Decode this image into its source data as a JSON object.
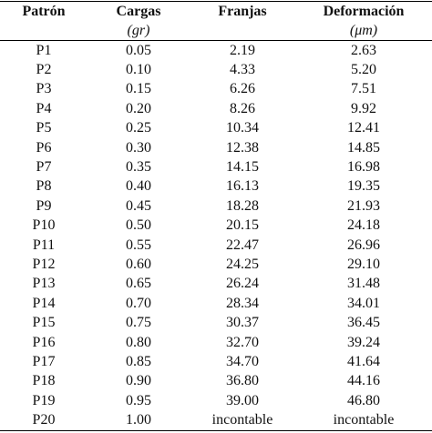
{
  "table": {
    "header": [
      "Patrón",
      "Cargas",
      "Franjas",
      "Deformación"
    ],
    "units": {
      "cargas": "(gr)",
      "deformacion": "(μm)"
    },
    "rows": [
      [
        "P1",
        "0.05",
        "2.19",
        "2.63"
      ],
      [
        "P2",
        "0.10",
        "4.33",
        "5.20"
      ],
      [
        "P3",
        "0.15",
        "6.26",
        "7.51"
      ],
      [
        "P4",
        "0.20",
        "8.26",
        "9.92"
      ],
      [
        "P5",
        "0.25",
        "10.34",
        "12.41"
      ],
      [
        "P6",
        "0.30",
        "12.38",
        "14.85"
      ],
      [
        "P7",
        "0.35",
        "14.15",
        "16.98"
      ],
      [
        "P8",
        "0.40",
        "16.13",
        "19.35"
      ],
      [
        "P9",
        "0.45",
        "18.28",
        "21.93"
      ],
      [
        "P10",
        "0.50",
        "20.15",
        "24.18"
      ],
      [
        "P11",
        "0.55",
        "22.47",
        "26.96"
      ],
      [
        "P12",
        "0.60",
        "24.25",
        "29.10"
      ],
      [
        "P13",
        "0.65",
        "26.24",
        "31.48"
      ],
      [
        "P14",
        "0.70",
        "28.34",
        "34.01"
      ],
      [
        "P15",
        "0.75",
        "30.37",
        "36.45"
      ],
      [
        "P16",
        "0.80",
        "32.70",
        "39.24"
      ],
      [
        "P17",
        "0.85",
        "34.70",
        "41.64"
      ],
      [
        "P18",
        "0.90",
        "36.80",
        "44.16"
      ],
      [
        "P19",
        "0.95",
        "39.00",
        "46.80"
      ],
      [
        "P20",
        "1.00",
        "incontable",
        "incontable"
      ]
    ]
  }
}
